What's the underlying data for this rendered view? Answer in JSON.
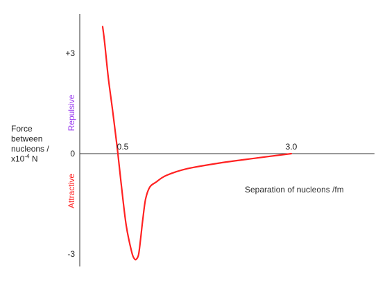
{
  "chart_data": {
    "type": "line",
    "title": "",
    "xlabel": "Separation of nucleons /fm",
    "ylabel": [
      "Force",
      "between",
      "nucleons /",
      "x10-4 N"
    ],
    "ylabel_base": "x10",
    "ylabel_exp": "-4",
    "ylabel_unit": "N",
    "region_labels": {
      "positive": "Repulsive",
      "negative": "Attractive",
      "positive_color": "#9b3df0",
      "negative_color": "#ff2222"
    },
    "y_ticks": [
      {
        "value": 3,
        "label": "+3"
      },
      {
        "value": 0,
        "label": "0"
      },
      {
        "value": -3,
        "label": "-3"
      }
    ],
    "x_annotations": [
      {
        "value": 0.5,
        "label": "0.5"
      },
      {
        "value": 3.0,
        "label": "3.0"
      }
    ],
    "xlim": [
      0.25,
      4.3
    ],
    "ylim": [
      -3.4,
      4.2
    ],
    "curve_color": "#ff2222",
    "series": [
      {
        "x": [
          0.28,
          0.31,
          0.36,
          0.42,
          0.48,
          0.5,
          0.55,
          0.62,
          0.7,
          0.74,
          0.77,
          0.8,
          0.83,
          0.86,
          0.9,
          0.96,
          1.05,
          1.2,
          1.5,
          2.0,
          2.5,
          3.0
        ],
        "y": [
          3.8,
          3.3,
          2.3,
          1.35,
          0.35,
          0.0,
          -0.95,
          -2.15,
          -2.95,
          -3.15,
          -3.15,
          -3.0,
          -2.5,
          -1.95,
          -1.35,
          -1.0,
          -0.85,
          -0.65,
          -0.45,
          -0.27,
          -0.13,
          0.0
        ]
      }
    ]
  }
}
